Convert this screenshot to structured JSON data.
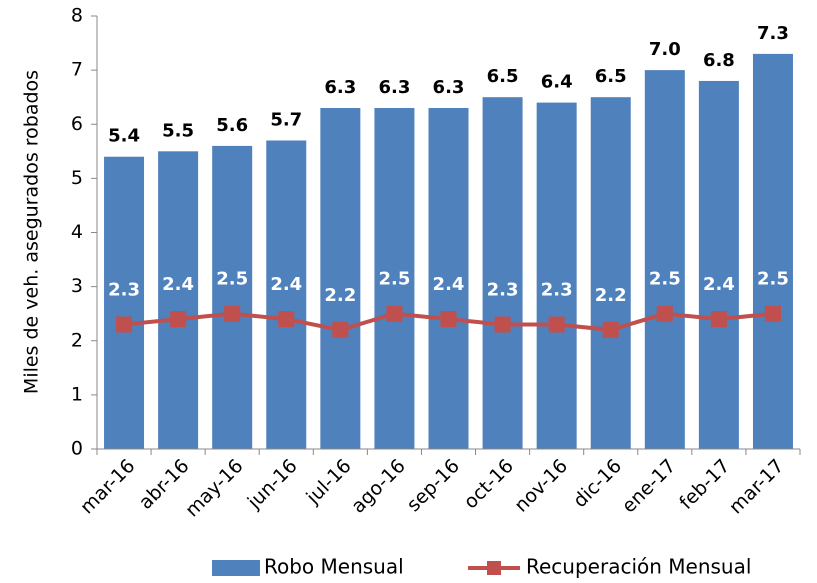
{
  "chart_data": {
    "type": "bar",
    "y_label": "Miles de veh. asegurados robados",
    "categories": [
      "mar-16",
      "abr-16",
      "may-16",
      "jun-16",
      "jul-16",
      "ago-16",
      "sep-16",
      "oct-16",
      "nov-16",
      "dic-16",
      "ene-17",
      "feb-17",
      "mar-17"
    ],
    "series": [
      {
        "name": "Robo Mensual",
        "type": "bar",
        "color": "#4f81bd",
        "values": [
          5.4,
          5.5,
          5.6,
          5.7,
          6.3,
          6.3,
          6.3,
          6.5,
          6.4,
          6.5,
          7.0,
          6.8,
          7.3
        ],
        "value_labels": [
          "5.4",
          "5.5",
          "5.6",
          "5.7",
          "6.3",
          "6.3",
          "6.3",
          "6.5",
          "6.4",
          "6.5",
          "7.0",
          "6.8",
          "7.3"
        ]
      },
      {
        "name": "Recuperación Mensual",
        "type": "line",
        "color": "#c0504d",
        "values": [
          2.3,
          2.4,
          2.5,
          2.4,
          2.2,
          2.5,
          2.4,
          2.3,
          2.3,
          2.2,
          2.5,
          2.4,
          2.5
        ],
        "value_labels": [
          "2.3",
          "2.4",
          "2.5",
          "2.4",
          "2.2",
          "2.5",
          "2.4",
          "2.3",
          "2.3",
          "2.2",
          "2.5",
          "2.4",
          "2.5"
        ]
      }
    ],
    "ylim": [
      0,
      8
    ],
    "yticks": [
      0,
      1,
      2,
      3,
      4,
      5,
      6,
      7,
      8
    ],
    "legend": "bottom"
  }
}
